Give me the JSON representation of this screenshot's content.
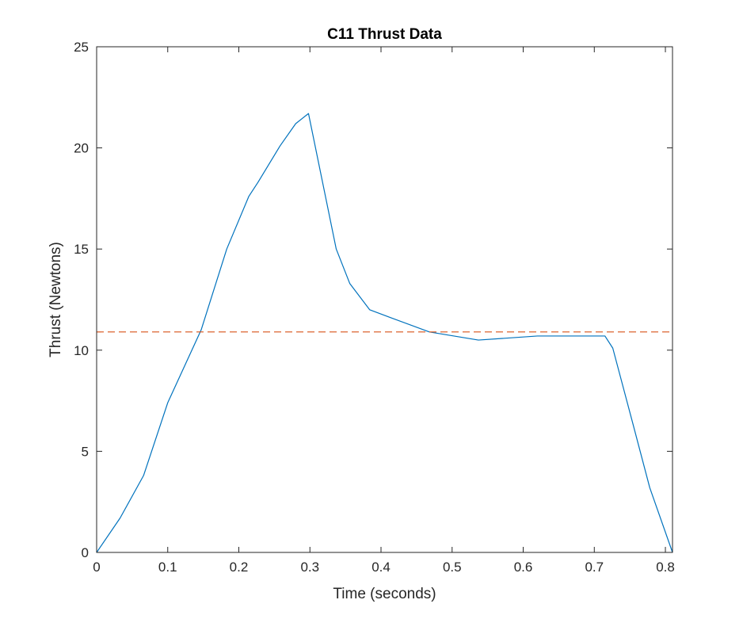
{
  "chart_data": {
    "type": "line",
    "title": "C11 Thrust Data",
    "xlabel": "Time (seconds)",
    "ylabel": "Thrust (Newtons)",
    "xlim": [
      0,
      0.81
    ],
    "ylim": [
      0,
      25
    ],
    "xticks": [
      0,
      0.1,
      0.2,
      0.3,
      0.4,
      0.5,
      0.6,
      0.7,
      0.8
    ],
    "xtick_labels": [
      "0",
      "0.1",
      "0.2",
      "0.3",
      "0.4",
      "0.5",
      "0.6",
      "0.7",
      "0.8"
    ],
    "yticks": [
      0,
      5,
      10,
      15,
      20,
      25
    ],
    "ytick_labels": [
      "0",
      "5",
      "10",
      "15",
      "20",
      "25"
    ],
    "grid": false,
    "box": true,
    "series": [
      {
        "color": "#0072BD",
        "style": "solid",
        "x": [
          0,
          0.033,
          0.066,
          0.1,
          0.147,
          0.183,
          0.214,
          0.227,
          0.258,
          0.28,
          0.298,
          0.337,
          0.356,
          0.384,
          0.414,
          0.468,
          0.537,
          0.62,
          0.715,
          0.726,
          0.754,
          0.778,
          0.81
        ],
        "y": [
          0,
          1.7,
          3.8,
          7.4,
          11.0,
          15.0,
          17.6,
          18.3,
          20.1,
          21.2,
          21.7,
          15.0,
          13.3,
          12.0,
          11.6,
          10.9,
          10.5,
          10.7,
          10.7,
          10.1,
          6.4,
          3.2,
          0
        ]
      },
      {
        "color": "#D95319",
        "style": "dashed",
        "x": [
          0,
          0.81
        ],
        "y": [
          10.9,
          10.9
        ]
      }
    ]
  }
}
